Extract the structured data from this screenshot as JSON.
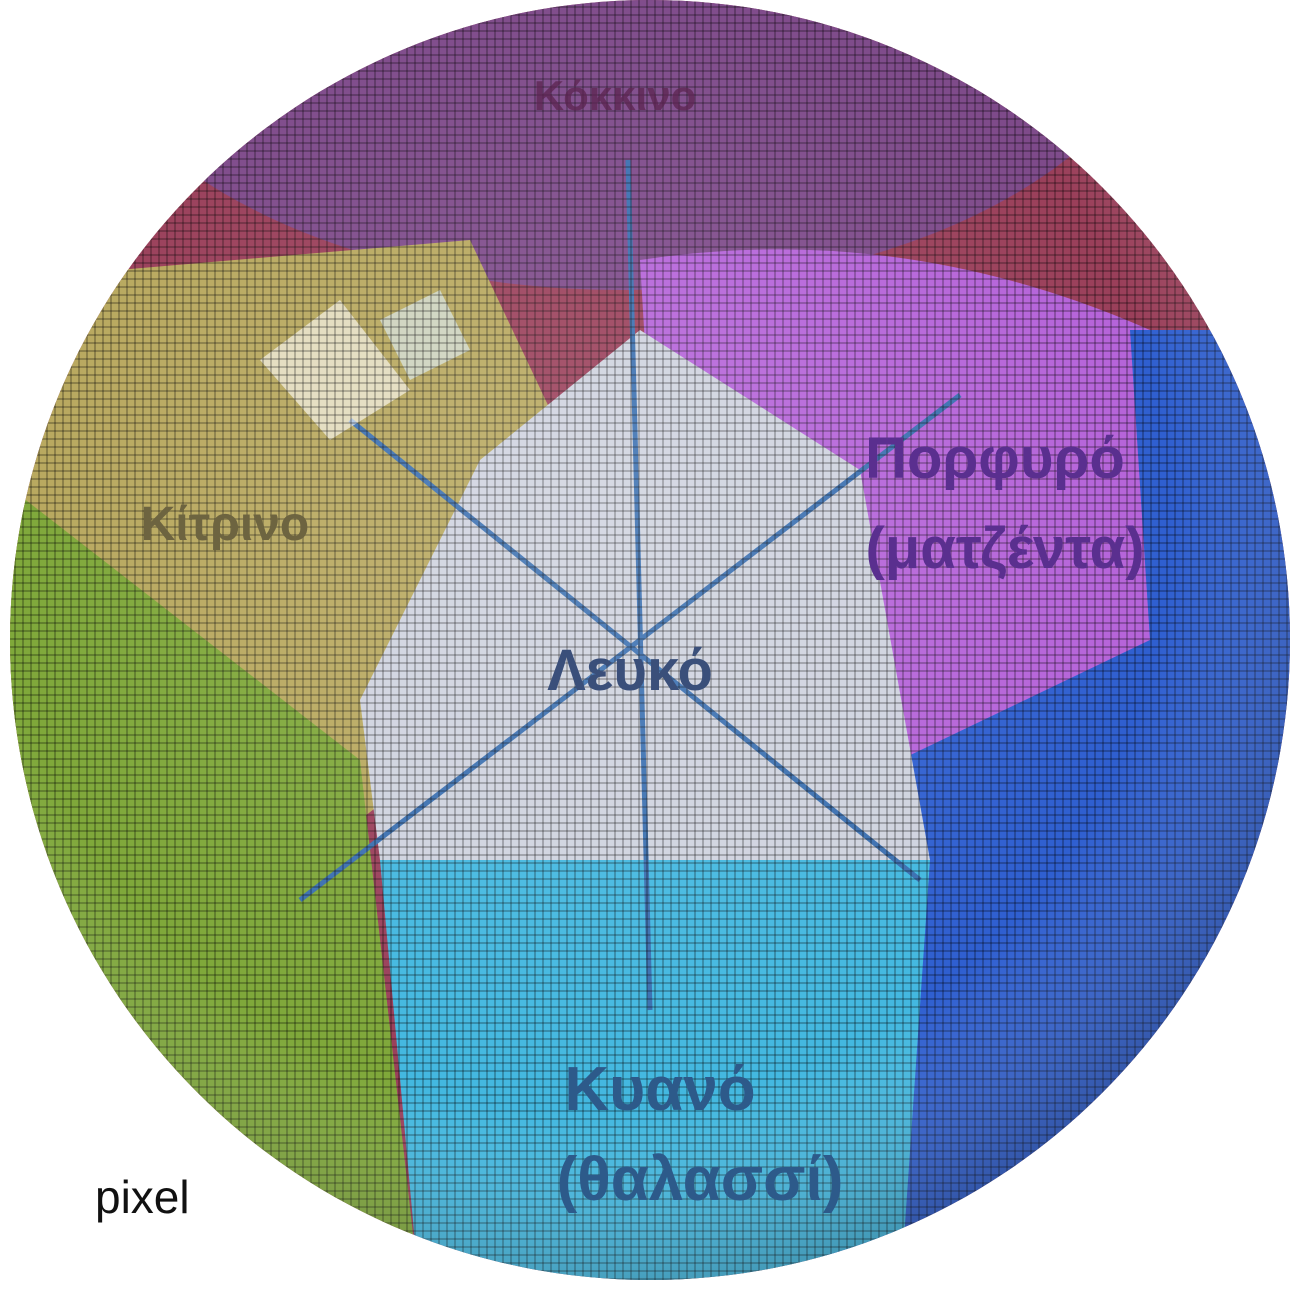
{
  "caption": "pixel",
  "labels": {
    "top": "Κόκκινο",
    "upper_left": "Κίτρινο",
    "right_line1": "Πορφυρό",
    "right_line2": "(ματζέντα)",
    "center": "Λευκό",
    "bottom_line1": "Κυανό",
    "bottom_line2": "(θαλασσί)"
  },
  "colors": {
    "red": "#9a3f5a",
    "yellow": "#b8a85e",
    "green": "#7fa83a",
    "magenta": "#b563d9",
    "blue": "#2f5fd0",
    "cyan": "#43b8e0",
    "white": "#cfd3df",
    "line": "#3a6fb0"
  }
}
